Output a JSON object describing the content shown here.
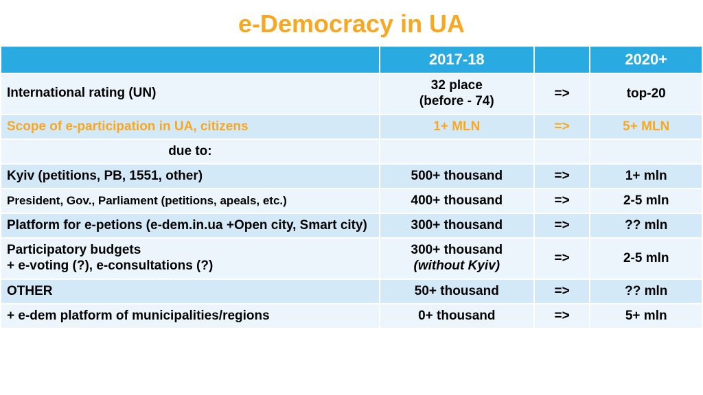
{
  "title": "e-Democracy in UA",
  "title_color": "#f7a823",
  "header": {
    "col1": "",
    "col2": "2017-18",
    "col3": "",
    "col4": "2020+"
  },
  "header_bg": "#29abe2",
  "row_light_bg": "#ecf5fb",
  "row_dark_bg": "#d4e9f7",
  "highlight_color": "#f7a823",
  "rows": [
    {
      "label": "International rating (UN)",
      "val1_line1": "32 place",
      "val1_line2": "(before - 74)",
      "arrow": "=>",
      "val2": "top-20"
    },
    {
      "label": "Scope of e-participation in UA, citizens",
      "val1": "1+ MLN",
      "arrow": "=>",
      "val2": "5+ MLN"
    },
    {
      "label": "due to:",
      "val1": "",
      "arrow": "",
      "val2": ""
    },
    {
      "label": "Kyiv (petitions, PB, 1551, other)",
      "val1": "500+ thousand",
      "arrow": "=>",
      "val2": "1+ mln"
    },
    {
      "label": "President, Gov., Parliament (petitions, apeals, etc.)",
      "val1": "400+ thousand",
      "arrow": "=>",
      "val2": "2-5 mln"
    },
    {
      "label": "Platform for e-petions (e-dem.in.ua +Open city, Smart city)",
      "val1": "300+ thousand",
      "arrow": "=>",
      "val2": "?? mln"
    },
    {
      "label_line1": "Participatory budgets",
      "label_line2": "+ e-voting (?), e-consultations (?)",
      "val1_line1": "300+ thousand",
      "val1_line2_italic": "(without Kyiv)",
      "arrow": "=>",
      "val2": "2-5 mln"
    },
    {
      "label": "OTHER",
      "val1": "50+ thousand",
      "arrow": "=>",
      "val2": "?? mln"
    },
    {
      "label": "+ e-dem platform of municipalities/regions",
      "val1": "0+ thousand",
      "arrow": "=>",
      "val2": "5+ mln"
    }
  ]
}
